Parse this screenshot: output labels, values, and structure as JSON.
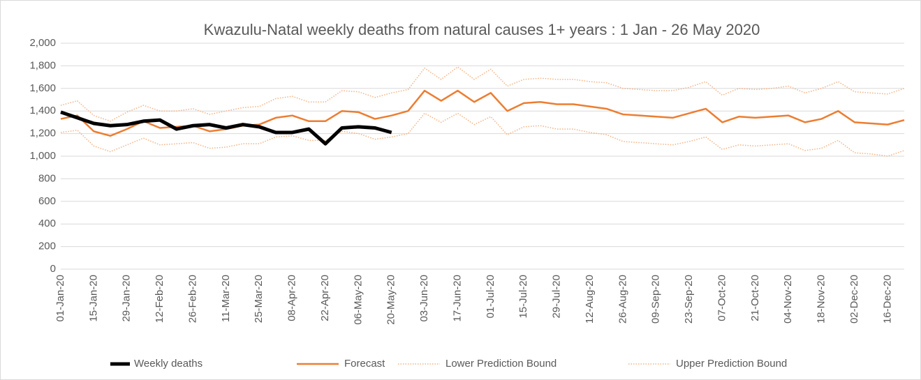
{
  "chart_data": {
    "type": "line",
    "title": "Kwazulu-Natal weekly deaths from natural causes 1+ years : 1 Jan - 26 May 2020",
    "categories": [
      "01-Jan-20",
      null,
      "15-Jan-20",
      null,
      "29-Jan-20",
      null,
      "12-Feb-20",
      null,
      "26-Feb-20",
      null,
      "11-Mar-20",
      null,
      "25-Mar-20",
      null,
      "08-Apr-20",
      null,
      "22-Apr-20",
      null,
      "06-May-20",
      null,
      "20-May-20",
      null,
      "03-Jun-20",
      null,
      "17-Jun-20",
      null,
      "01-Jul-20",
      null,
      "15-Jul-20",
      null,
      "29-Jul-20",
      null,
      "12-Aug-20",
      null,
      "26-Aug-20",
      null,
      "09-Sep-20",
      null,
      "23-Sep-20",
      null,
      "07-Oct-20",
      null,
      "21-Oct-20",
      null,
      "04-Nov-20",
      null,
      "18-Nov-20",
      null,
      "02-Dec-20",
      null,
      "16-Dec-20",
      null
    ],
    "series": [
      {
        "name": "Weekly deaths",
        "color": "#000000",
        "dash": "solid",
        "values": [
          1390,
          1340,
          1290,
          1270,
          1280,
          1310,
          1320,
          1240,
          1270,
          1280,
          1250,
          1280,
          1260,
          1210,
          1210,
          1240,
          1110,
          1250,
          1260,
          1250,
          1210,
          null,
          null,
          null,
          null,
          null,
          null,
          null,
          null,
          null,
          null,
          null,
          null,
          null,
          null,
          null,
          null,
          null,
          null,
          null,
          null,
          null,
          null,
          null,
          null,
          null,
          null,
          null,
          null,
          null,
          null,
          null
        ]
      },
      {
        "name": "Forecast",
        "color": "#ed7d31",
        "dash": "solid",
        "values": [
          1330,
          1360,
          1220,
          1180,
          1240,
          1310,
          1250,
          1260,
          1270,
          1220,
          1240,
          1270,
          1280,
          1340,
          1360,
          1310,
          1310,
          1400,
          1390,
          1330,
          1360,
          1400,
          1580,
          1490,
          1580,
          1480,
          1560,
          1400,
          1470,
          1480,
          1460,
          1460,
          1440,
          1420,
          1370,
          1360,
          1350,
          1340,
          1380,
          1420,
          1300,
          1350,
          1340,
          1350,
          1360,
          1300,
          1330,
          1400,
          1300,
          1290,
          1280,
          1320
        ]
      },
      {
        "name": "Lower Prediction Bound",
        "color": "#f4b183",
        "dash": "dotted",
        "values": [
          1210,
          1230,
          1090,
          1040,
          1100,
          1160,
          1100,
          1110,
          1120,
          1070,
          1080,
          1110,
          1110,
          1170,
          1180,
          1140,
          1140,
          1220,
          1200,
          1150,
          1170,
          1200,
          1380,
          1300,
          1380,
          1280,
          1350,
          1190,
          1260,
          1270,
          1240,
          1240,
          1210,
          1190,
          1130,
          1120,
          1110,
          1100,
          1130,
          1170,
          1060,
          1100,
          1090,
          1100,
          1110,
          1050,
          1070,
          1140,
          1030,
          1020,
          1000,
          1050
        ]
      },
      {
        "name": "Upper Prediction Bound",
        "color": "#f4b183",
        "dash": "dotted",
        "values": [
          1450,
          1490,
          1360,
          1310,
          1390,
          1450,
          1400,
          1400,
          1420,
          1370,
          1400,
          1430,
          1440,
          1510,
          1530,
          1480,
          1480,
          1580,
          1570,
          1520,
          1560,
          1590,
          1780,
          1680,
          1790,
          1680,
          1770,
          1620,
          1680,
          1690,
          1680,
          1680,
          1660,
          1650,
          1600,
          1590,
          1580,
          1580,
          1610,
          1660,
          1540,
          1600,
          1590,
          1600,
          1620,
          1560,
          1600,
          1660,
          1570,
          1560,
          1550,
          1600
        ]
      }
    ],
    "ylim": [
      0,
      2000
    ],
    "yticks": [
      0,
      200,
      400,
      600,
      800,
      {
        "value": 1000,
        "label": "1,000"
      },
      {
        "value": 1200,
        "label": "1,200"
      },
      {
        "value": 1400,
        "label": "1,400"
      },
      {
        "value": 1600,
        "label": "1,600"
      },
      {
        "value": 1800,
        "label": "1,800"
      },
      {
        "value": 2000,
        "label": "2,000"
      }
    ],
    "grid": true,
    "legend": "bottom"
  }
}
